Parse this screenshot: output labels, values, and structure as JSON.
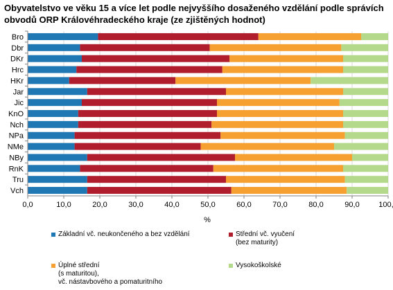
{
  "chart_data": {
    "type": "bar",
    "orientation": "horizontal",
    "stacked": true,
    "title": "Obyvatelstvo ve věku 15 a více let podle nejvyššího dosaženého vzdělání podle správích obvodů ORP Královéhradeckého kraje (ze zjištěných hodnot)",
    "xlabel": "%",
    "ylabel": "",
    "xlim": [
      0,
      100
    ],
    "xticks": [
      "0,0",
      "10,0",
      "20,0",
      "30,0",
      "40,0",
      "50,0",
      "60,0",
      "70,0",
      "80,0",
      "90,0",
      "100,0"
    ],
    "grid": true,
    "legend_position": "bottom",
    "categories": [
      "Bro",
      "Dbr",
      "DKr",
      "Hrc",
      "HKr",
      "Jar",
      "Jic",
      "KnO",
      "Nch",
      "NPa",
      "NMe",
      "NBy",
      "RnK",
      "Tru",
      "Vch"
    ],
    "series": [
      {
        "name": "Základní vč. neukončeného a bez vzdělání",
        "color": "#1f77b4",
        "values": [
          19.5,
          14.5,
          15.0,
          13.5,
          11.5,
          16.5,
          15.0,
          14.0,
          14.0,
          13.0,
          13.0,
          16.5,
          14.5,
          16.5,
          16.5
        ]
      },
      {
        "name": "Střední vč. vyučení\n(bez maturity)",
        "color": "#b01e2e",
        "values": [
          44.5,
          36.0,
          41.0,
          40.5,
          29.5,
          38.5,
          37.5,
          38.5,
          37.0,
          40.5,
          35.0,
          41.0,
          37.0,
          38.5,
          40.0
        ]
      },
      {
        "name": "Úplné  střední\n(s maturitou),\nvč. nástavbového a pomaturitního",
        "color": "#f5a030",
        "values": [
          28.5,
          36.5,
          31.5,
          33.5,
          37.5,
          32.5,
          34.0,
          35.0,
          36.5,
          34.5,
          37.0,
          32.5,
          36.0,
          33.0,
          32.0
        ]
      },
      {
        "name": "Vysokoškolské",
        "color": "#b5d98a",
        "values": [
          7.5,
          13.0,
          12.5,
          12.5,
          21.5,
          12.5,
          13.5,
          12.5,
          12.5,
          12.0,
          15.0,
          10.0,
          12.5,
          12.0,
          11.5
        ]
      }
    ]
  }
}
